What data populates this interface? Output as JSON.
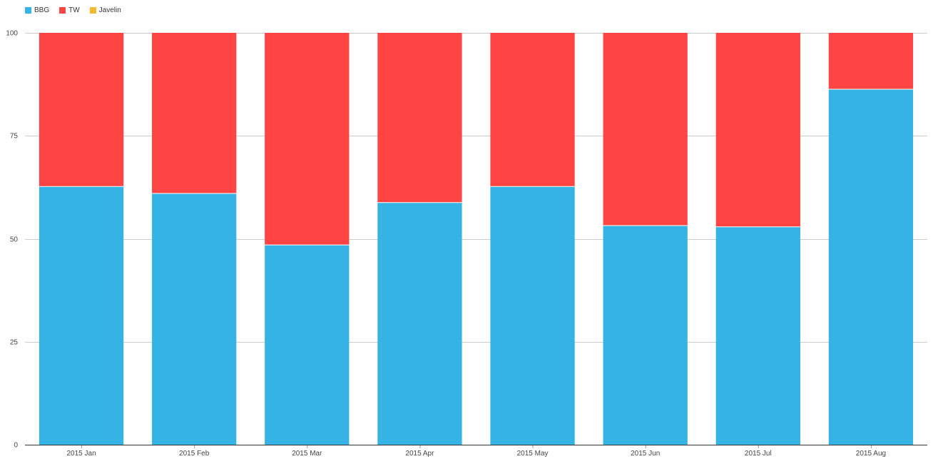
{
  "legend": [
    {
      "name": "BBG",
      "color": "#35b3e4"
    },
    {
      "name": "TW",
      "color": "#ff4444"
    },
    {
      "name": "Javelin",
      "color": "#f5b82e"
    }
  ],
  "chart_data": {
    "type": "bar",
    "stacked": true,
    "categories": [
      "2015 Jan",
      "2015 Feb",
      "2015 Mar",
      "2015 Apr",
      "2015 May",
      "2015 Jun",
      "2015 Jul",
      "2015 Aug"
    ],
    "series": [
      {
        "name": "BBG",
        "color": "#35b3e4",
        "values": [
          62.7,
          61.0,
          48.5,
          58.8,
          62.7,
          53.2,
          52.9,
          86.3
        ]
      },
      {
        "name": "TW",
        "color": "#ff4444",
        "values": [
          37.3,
          39.0,
          51.5,
          41.2,
          37.3,
          46.8,
          47.1,
          13.7
        ]
      },
      {
        "name": "Javelin",
        "color": "#f5b82e",
        "values": [
          0,
          0,
          0,
          0,
          0,
          0,
          0,
          0
        ]
      }
    ],
    "y_ticks": [
      0,
      25,
      50,
      75,
      100
    ],
    "ylim": [
      0,
      100
    ],
    "grid": true,
    "legend_position": "top-left"
  }
}
